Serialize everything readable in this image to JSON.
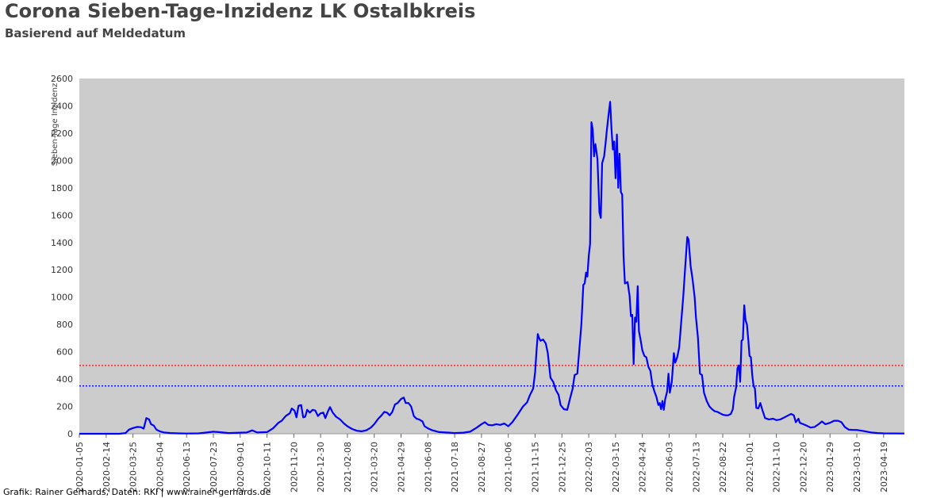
{
  "header": {
    "title": "Corona Sieben-Tage-Inzidenz LK Ostalbkreis",
    "subtitle": "Basierend auf Meldedatum"
  },
  "footer": {
    "credit": "Grafik: Rainer Gerhards, Daten: RKI | www.rainer-gerhards.de"
  },
  "colors": {
    "series": "#0000ff",
    "plot_background": "#cccccc",
    "threshold_red": "#ff0000",
    "threshold_blue": "#0000ff",
    "title": "#444444"
  },
  "chart_data": {
    "type": "line",
    "title": "Corona Sieben-Tage-Inzidenz LK Ostalbkreis",
    "subtitle": "Basierend auf Meldedatum",
    "xlabel": "",
    "ylabel": "Sieben-Tage Inzidenz",
    "ylim": [
      0,
      2600
    ],
    "xlim": [
      "2020-01-05",
      "2023-05-20"
    ],
    "grid": false,
    "legend": "none",
    "y_ticks": [
      0,
      200,
      400,
      600,
      800,
      1000,
      1200,
      1400,
      1600,
      1800,
      2000,
      2200,
      2400,
      2600
    ],
    "x_ticks": [
      "2020-01-05",
      "2020-02-14",
      "2020-03-25",
      "2020-05-04",
      "2020-06-13",
      "2020-07-23",
      "2020-09-01",
      "2020-10-11",
      "2020-11-20",
      "2020-12-30",
      "2021-02-08",
      "2021-03-20",
      "2021-04-29",
      "2021-06-08",
      "2021-07-18",
      "2021-08-27",
      "2021-10-06",
      "2021-11-15",
      "2021-12-25",
      "2022-02-03",
      "2022-03-15",
      "2022-04-24",
      "2022-06-03",
      "2022-07-13",
      "2022-08-22",
      "2022-10-01",
      "2022-11-10",
      "2022-12-20",
      "2023-01-29",
      "2023-03-10",
      "2023-04-19"
    ],
    "reference_lines": [
      {
        "value": 500,
        "color": "#ff0000",
        "style": "dotted"
      },
      {
        "value": 350,
        "color": "#0000ff",
        "style": "dotted"
      }
    ],
    "series": [
      {
        "values": [
          [
            "2020-01-05",
            0
          ],
          [
            "2020-02-14",
            0
          ],
          [
            "2020-03-05",
            0
          ],
          [
            "2020-03-14",
            5
          ],
          [
            "2020-03-19",
            30
          ],
          [
            "2020-03-25",
            42
          ],
          [
            "2020-03-31",
            50
          ],
          [
            "2020-04-06",
            48
          ],
          [
            "2020-04-10",
            38
          ],
          [
            "2020-04-14",
            115
          ],
          [
            "2020-04-18",
            105
          ],
          [
            "2020-04-21",
            70
          ],
          [
            "2020-04-25",
            60
          ],
          [
            "2020-04-29",
            30
          ],
          [
            "2020-05-04",
            18
          ],
          [
            "2020-05-10",
            10
          ],
          [
            "2020-05-20",
            5
          ],
          [
            "2020-06-01",
            3
          ],
          [
            "2020-06-13",
            2
          ],
          [
            "2020-07-01",
            3
          ],
          [
            "2020-07-23",
            15
          ],
          [
            "2020-07-31",
            12
          ],
          [
            "2020-08-15",
            5
          ],
          [
            "2020-09-01",
            8
          ],
          [
            "2020-09-11",
            10
          ],
          [
            "2020-09-19",
            25
          ],
          [
            "2020-09-26",
            10
          ],
          [
            "2020-10-11",
            12
          ],
          [
            "2020-10-20",
            40
          ],
          [
            "2020-10-28",
            80
          ],
          [
            "2020-11-02",
            95
          ],
          [
            "2020-11-08",
            130
          ],
          [
            "2020-11-14",
            150
          ],
          [
            "2020-11-17",
            185
          ],
          [
            "2020-11-21",
            170
          ],
          [
            "2020-11-24",
            120
          ],
          [
            "2020-11-27",
            205
          ],
          [
            "2020-12-01",
            210
          ],
          [
            "2020-12-04",
            120
          ],
          [
            "2020-12-07",
            125
          ],
          [
            "2020-12-10",
            175
          ],
          [
            "2020-12-14",
            155
          ],
          [
            "2020-12-18",
            175
          ],
          [
            "2020-12-22",
            170
          ],
          [
            "2020-12-26",
            130
          ],
          [
            "2020-12-30",
            150
          ],
          [
            "2021-01-03",
            155
          ],
          [
            "2021-01-06",
            115
          ],
          [
            "2021-01-10",
            165
          ],
          [
            "2021-01-13",
            195
          ],
          [
            "2021-01-17",
            155
          ],
          [
            "2021-01-22",
            125
          ],
          [
            "2021-01-28",
            105
          ],
          [
            "2021-02-03",
            75
          ],
          [
            "2021-02-08",
            55
          ],
          [
            "2021-02-15",
            35
          ],
          [
            "2021-02-22",
            22
          ],
          [
            "2021-03-01",
            18
          ],
          [
            "2021-03-08",
            25
          ],
          [
            "2021-03-15",
            45
          ],
          [
            "2021-03-20",
            70
          ],
          [
            "2021-03-26",
            110
          ],
          [
            "2021-03-31",
            135
          ],
          [
            "2021-04-04",
            160
          ],
          [
            "2021-04-08",
            155
          ],
          [
            "2021-04-12",
            135
          ],
          [
            "2021-04-16",
            160
          ],
          [
            "2021-04-20",
            215
          ],
          [
            "2021-04-24",
            225
          ],
          [
            "2021-04-29",
            255
          ],
          [
            "2021-05-03",
            265
          ],
          [
            "2021-05-06",
            225
          ],
          [
            "2021-05-10",
            225
          ],
          [
            "2021-05-14",
            200
          ],
          [
            "2021-05-18",
            130
          ],
          [
            "2021-05-22",
            110
          ],
          [
            "2021-05-26",
            105
          ],
          [
            "2021-05-31",
            90
          ],
          [
            "2021-06-03",
            55
          ],
          [
            "2021-06-08",
            40
          ],
          [
            "2021-06-15",
            25
          ],
          [
            "2021-06-25",
            12
          ],
          [
            "2021-07-10",
            8
          ],
          [
            "2021-07-18",
            5
          ],
          [
            "2021-07-31",
            8
          ],
          [
            "2021-08-10",
            15
          ],
          [
            "2021-08-20",
            45
          ],
          [
            "2021-08-27",
            70
          ],
          [
            "2021-09-01",
            85
          ],
          [
            "2021-09-06",
            65
          ],
          [
            "2021-09-12",
            62
          ],
          [
            "2021-09-18",
            70
          ],
          [
            "2021-09-24",
            65
          ],
          [
            "2021-09-30",
            75
          ],
          [
            "2021-10-06",
            55
          ],
          [
            "2021-10-12",
            85
          ],
          [
            "2021-10-20",
            140
          ],
          [
            "2021-10-28",
            200
          ],
          [
            "2021-11-03",
            230
          ],
          [
            "2021-11-07",
            280
          ],
          [
            "2021-11-12",
            330
          ],
          [
            "2021-11-15",
            450
          ],
          [
            "2021-11-17",
            600
          ],
          [
            "2021-11-19",
            730
          ],
          [
            "2021-11-21",
            700
          ],
          [
            "2021-11-23",
            680
          ],
          [
            "2021-11-27",
            690
          ],
          [
            "2021-12-01",
            660
          ],
          [
            "2021-12-04",
            590
          ],
          [
            "2021-12-08",
            410
          ],
          [
            "2021-12-12",
            380
          ],
          [
            "2021-12-16",
            320
          ],
          [
            "2021-12-20",
            285
          ],
          [
            "2021-12-23",
            210
          ],
          [
            "2021-12-28",
            180
          ],
          [
            "2022-01-02",
            175
          ],
          [
            "2022-01-06",
            255
          ],
          [
            "2022-01-10",
            330
          ],
          [
            "2022-01-13",
            430
          ],
          [
            "2022-01-17",
            440
          ],
          [
            "2022-01-20",
            620
          ],
          [
            "2022-01-23",
            800
          ],
          [
            "2022-01-26",
            1090
          ],
          [
            "2022-01-28",
            1100
          ],
          [
            "2022-01-30",
            1180
          ],
          [
            "2022-02-01",
            1150
          ],
          [
            "2022-02-03",
            1300
          ],
          [
            "2022-02-05",
            1390
          ],
          [
            "2022-02-07",
            2280
          ],
          [
            "2022-02-09",
            2230
          ],
          [
            "2022-02-11",
            2030
          ],
          [
            "2022-02-13",
            2120
          ],
          [
            "2022-02-16",
            2010
          ],
          [
            "2022-02-19",
            1620
          ],
          [
            "2022-02-21",
            1580
          ],
          [
            "2022-02-23",
            1980
          ],
          [
            "2022-02-26",
            2030
          ],
          [
            "2022-02-28",
            2120
          ],
          [
            "2022-03-02",
            2220
          ],
          [
            "2022-03-05",
            2350
          ],
          [
            "2022-03-07",
            2430
          ],
          [
            "2022-03-09",
            2230
          ],
          [
            "2022-03-11",
            2080
          ],
          [
            "2022-03-13",
            2140
          ],
          [
            "2022-03-15",
            1870
          ],
          [
            "2022-03-17",
            2190
          ],
          [
            "2022-03-19",
            1800
          ],
          [
            "2022-03-21",
            2050
          ],
          [
            "2022-03-23",
            1770
          ],
          [
            "2022-03-25",
            1750
          ],
          [
            "2022-03-27",
            1300
          ],
          [
            "2022-03-29",
            1100
          ],
          [
            "2022-04-02",
            1110
          ],
          [
            "2022-04-05",
            1010
          ],
          [
            "2022-04-07",
            860
          ],
          [
            "2022-04-09",
            870
          ],
          [
            "2022-04-11",
            510
          ],
          [
            "2022-04-13",
            850
          ],
          [
            "2022-04-15",
            820
          ],
          [
            "2022-04-17",
            1080
          ],
          [
            "2022-04-19",
            750
          ],
          [
            "2022-04-21",
            700
          ],
          [
            "2022-04-24",
            610
          ],
          [
            "2022-04-27",
            570
          ],
          [
            "2022-04-30",
            560
          ],
          [
            "2022-05-03",
            490
          ],
          [
            "2022-05-06",
            460
          ],
          [
            "2022-05-09",
            360
          ],
          [
            "2022-05-12",
            310
          ],
          [
            "2022-05-15",
            270
          ],
          [
            "2022-05-18",
            210
          ],
          [
            "2022-05-20",
            225
          ],
          [
            "2022-05-22",
            180
          ],
          [
            "2022-05-24",
            240
          ],
          [
            "2022-05-26",
            175
          ],
          [
            "2022-05-28",
            250
          ],
          [
            "2022-05-31",
            310
          ],
          [
            "2022-06-02",
            440
          ],
          [
            "2022-06-04",
            300
          ],
          [
            "2022-06-07",
            380
          ],
          [
            "2022-06-10",
            590
          ],
          [
            "2022-06-12",
            520
          ],
          [
            "2022-06-15",
            560
          ],
          [
            "2022-06-18",
            630
          ],
          [
            "2022-06-21",
            820
          ],
          [
            "2022-06-24",
            1000
          ],
          [
            "2022-06-27",
            1220
          ],
          [
            "2022-06-30",
            1440
          ],
          [
            "2022-07-02",
            1420
          ],
          [
            "2022-07-05",
            1230
          ],
          [
            "2022-07-08",
            1130
          ],
          [
            "2022-07-11",
            1000
          ],
          [
            "2022-07-13",
            850
          ],
          [
            "2022-07-16",
            700
          ],
          [
            "2022-07-19",
            440
          ],
          [
            "2022-07-22",
            430
          ],
          [
            "2022-07-25",
            300
          ],
          [
            "2022-07-29",
            240
          ],
          [
            "2022-08-02",
            200
          ],
          [
            "2022-08-06",
            180
          ],
          [
            "2022-08-10",
            165
          ],
          [
            "2022-08-14",
            160
          ],
          [
            "2022-08-18",
            150
          ],
          [
            "2022-08-22",
            140
          ],
          [
            "2022-08-26",
            135
          ],
          [
            "2022-08-30",
            135
          ],
          [
            "2022-09-03",
            145
          ],
          [
            "2022-09-06",
            180
          ],
          [
            "2022-09-08",
            270
          ],
          [
            "2022-09-11",
            340
          ],
          [
            "2022-09-13",
            480
          ],
          [
            "2022-09-15",
            500
          ],
          [
            "2022-09-17",
            380
          ],
          [
            "2022-09-19",
            680
          ],
          [
            "2022-09-21",
            690
          ],
          [
            "2022-09-23",
            940
          ],
          [
            "2022-09-25",
            830
          ],
          [
            "2022-09-27",
            800
          ],
          [
            "2022-09-29",
            690
          ],
          [
            "2022-10-01",
            570
          ],
          [
            "2022-10-03",
            560
          ],
          [
            "2022-10-05",
            430
          ],
          [
            "2022-10-07",
            350
          ],
          [
            "2022-10-09",
            330
          ],
          [
            "2022-10-11",
            190
          ],
          [
            "2022-10-14",
            185
          ],
          [
            "2022-10-17",
            225
          ],
          [
            "2022-10-20",
            175
          ],
          [
            "2022-10-24",
            115
          ],
          [
            "2022-10-30",
            105
          ],
          [
            "2022-11-05",
            110
          ],
          [
            "2022-11-10",
            100
          ],
          [
            "2022-11-16",
            105
          ],
          [
            "2022-11-22",
            120
          ],
          [
            "2022-11-28",
            135
          ],
          [
            "2022-12-02",
            145
          ],
          [
            "2022-12-06",
            135
          ],
          [
            "2022-12-09",
            85
          ],
          [
            "2022-12-13",
            110
          ],
          [
            "2022-12-15",
            80
          ],
          [
            "2022-12-20",
            70
          ],
          [
            "2022-12-25",
            60
          ],
          [
            "2022-12-31",
            45
          ],
          [
            "2023-01-06",
            50
          ],
          [
            "2023-01-12",
            70
          ],
          [
            "2023-01-17",
            90
          ],
          [
            "2023-01-22",
            70
          ],
          [
            "2023-01-29",
            80
          ],
          [
            "2023-02-04",
            95
          ],
          [
            "2023-02-10",
            95
          ],
          [
            "2023-02-15",
            85
          ],
          [
            "2023-02-20",
            50
          ],
          [
            "2023-02-26",
            30
          ],
          [
            "2023-03-05",
            28
          ],
          [
            "2023-03-10",
            28
          ],
          [
            "2023-03-20",
            20
          ],
          [
            "2023-03-31",
            10
          ],
          [
            "2023-04-10",
            5
          ],
          [
            "2023-04-19",
            3
          ],
          [
            "2023-05-20",
            2
          ]
        ]
      }
    ]
  }
}
